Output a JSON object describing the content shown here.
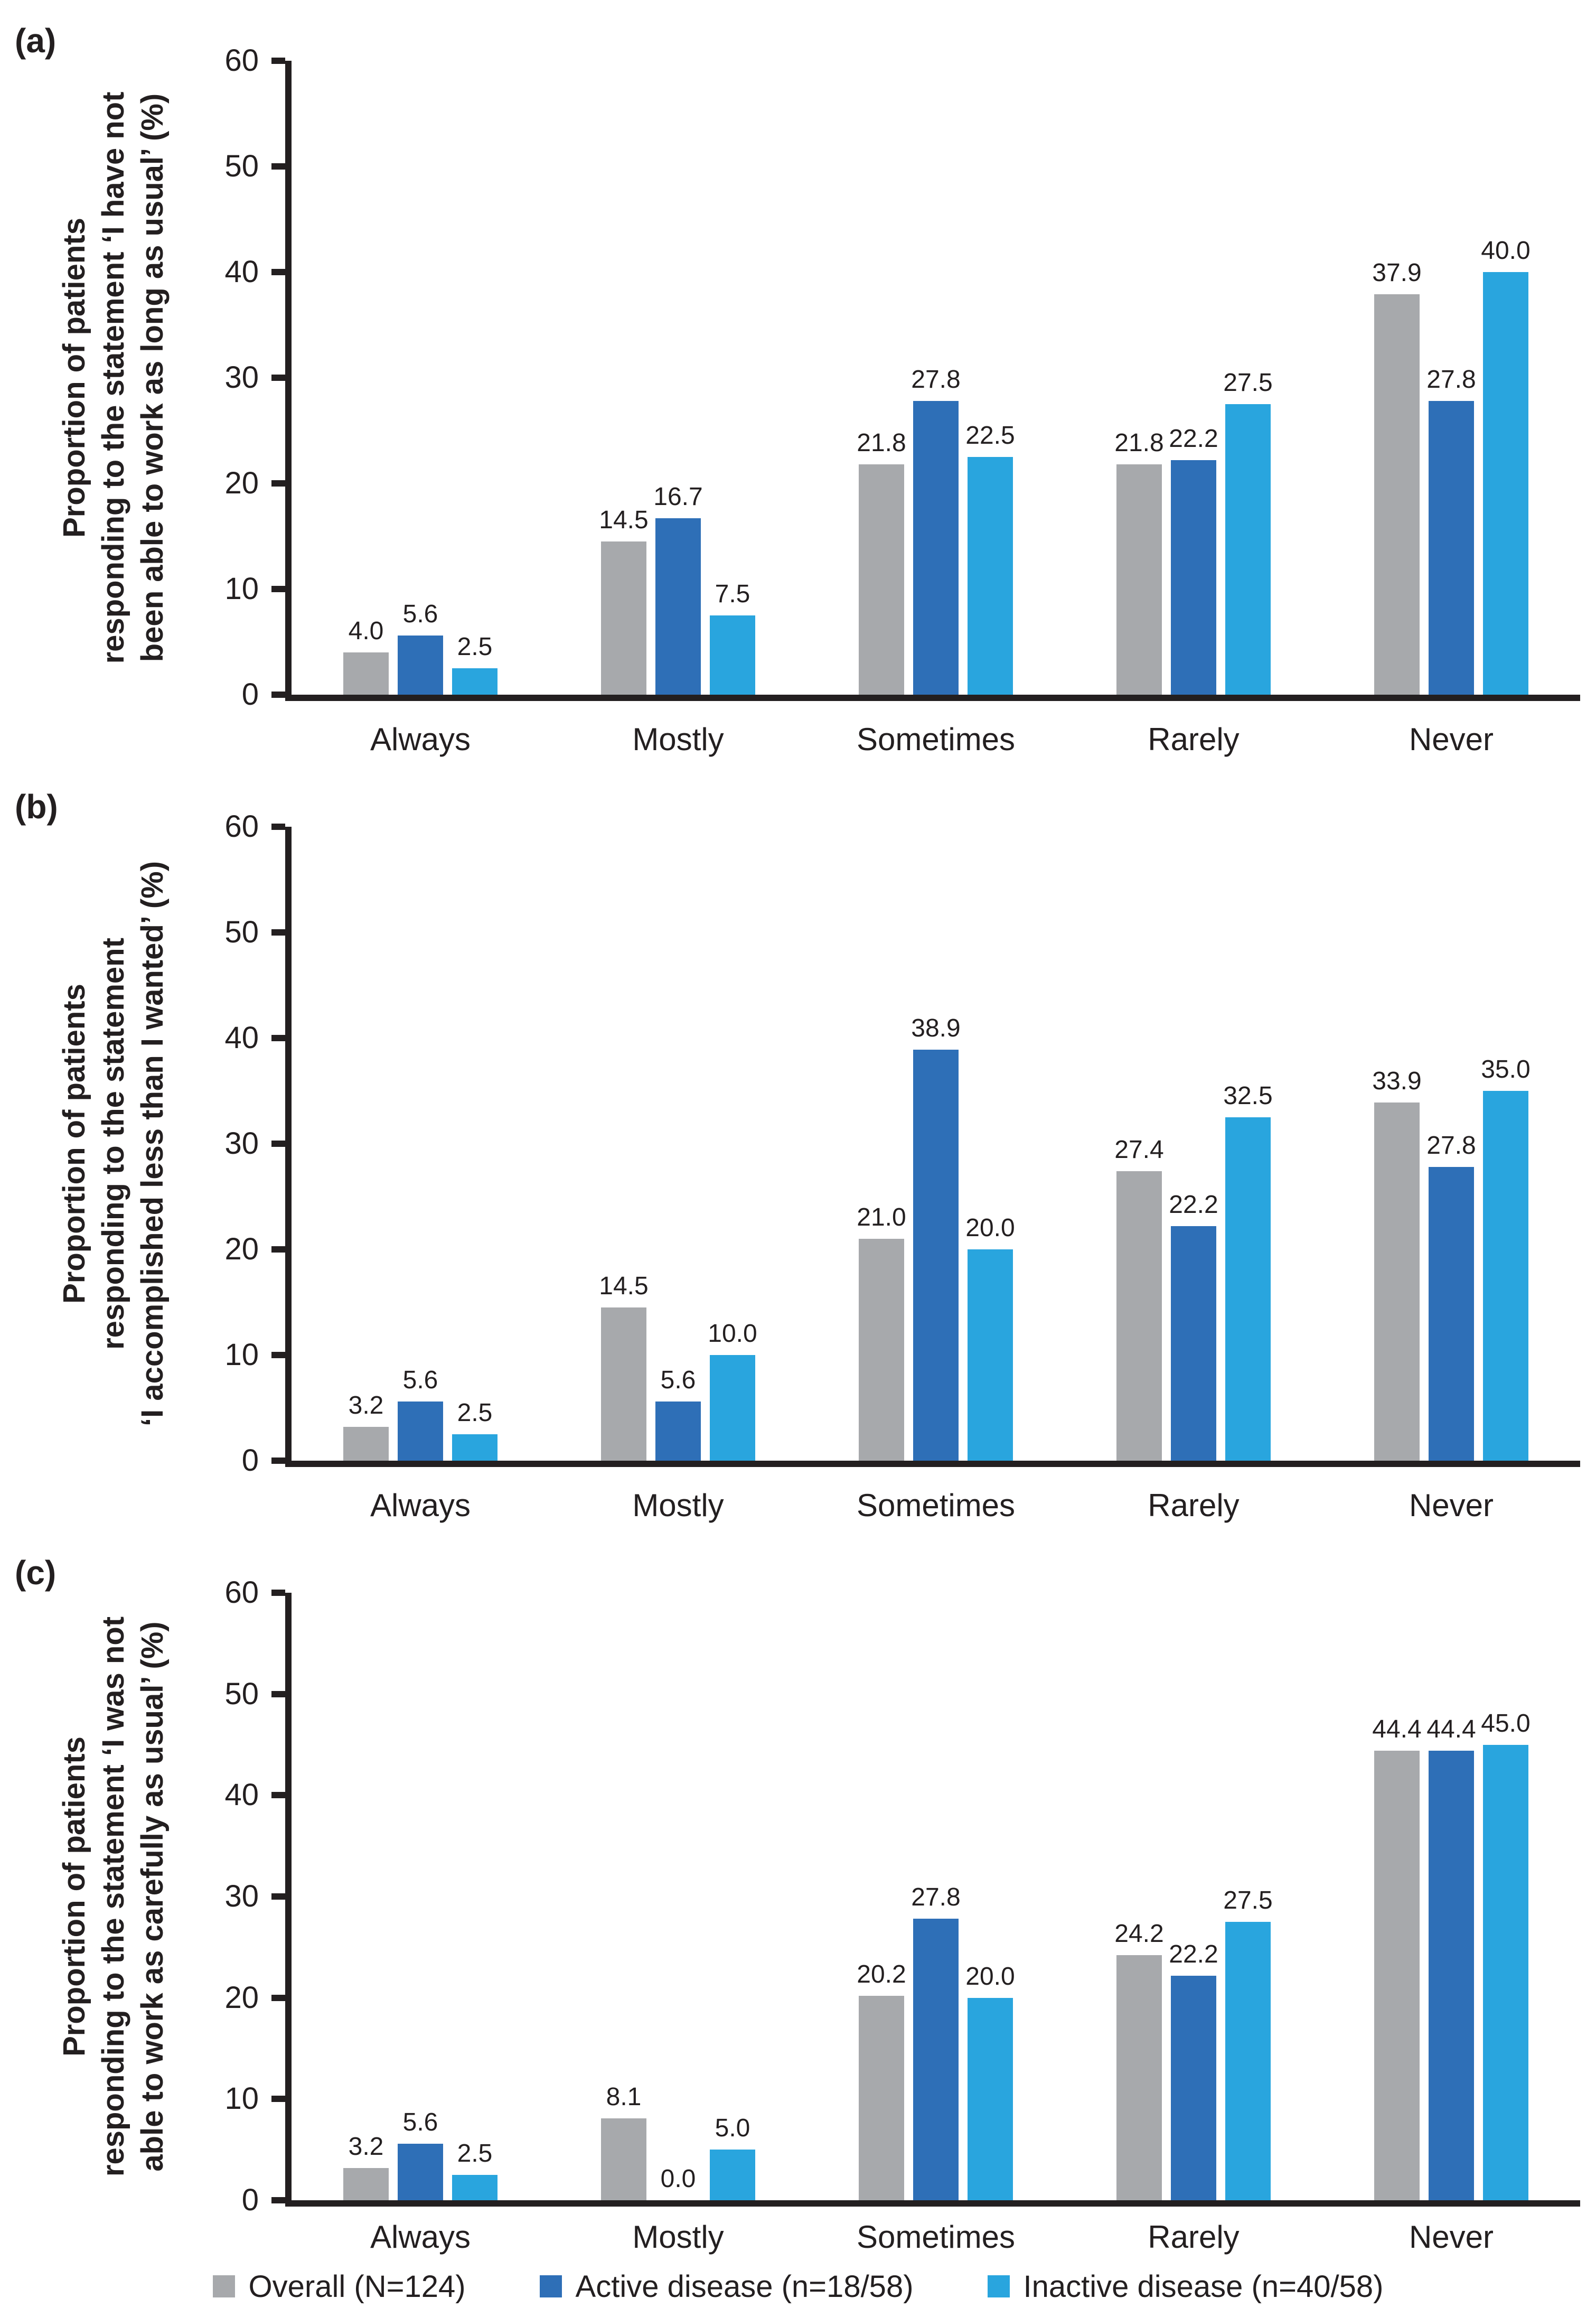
{
  "chart_data": [
    {
      "type": "bar",
      "panel_label": "(a)",
      "ylabel": "Proportion of patients responding to the statement ‘I have not been able to work as long as usual’ (%)",
      "ylabel_lines": [
        "Proportion of patients",
        "responding to the statement ‘I have not",
        "been able to work as long as usual’ (%)"
      ],
      "categories": [
        "Always",
        "Mostly",
        "Sometimes",
        "Rarely",
        "Never"
      ],
      "series": [
        {
          "name": "Overall (N=124)",
          "color": "#a7a9ac",
          "values": [
            4.0,
            14.5,
            21.8,
            21.8,
            37.9
          ]
        },
        {
          "name": "Active disease (n=18/58)",
          "color": "#2e6fb7",
          "values": [
            5.6,
            16.7,
            27.8,
            22.2,
            27.8
          ]
        },
        {
          "name": "Inactive disease (n=40/58)",
          "color": "#29a5de",
          "values": [
            2.5,
            7.5,
            22.5,
            27.5,
            40.0
          ]
        }
      ],
      "ylim": [
        0,
        60
      ],
      "yticks": [
        0,
        10,
        20,
        30,
        40,
        50,
        60
      ],
      "grid": false,
      "legend_position": "bottom"
    },
    {
      "type": "bar",
      "panel_label": "(b)",
      "ylabel": "Proportion of patients responding to the statement ‘I accomplished less than I wanted’ (%)",
      "ylabel_lines": [
        "Proportion of patients",
        "responding to the statement",
        "‘I accomplished less than I wanted’ (%)"
      ],
      "categories": [
        "Always",
        "Mostly",
        "Sometimes",
        "Rarely",
        "Never"
      ],
      "series": [
        {
          "name": "Overall (N=124)",
          "color": "#a7a9ac",
          "values": [
            3.2,
            14.5,
            21.0,
            27.4,
            33.9
          ]
        },
        {
          "name": "Active disease (n=18/58)",
          "color": "#2e6fb7",
          "values": [
            5.6,
            5.6,
            38.9,
            22.2,
            27.8
          ]
        },
        {
          "name": "Inactive disease (n=40/58)",
          "color": "#29a5de",
          "values": [
            2.5,
            10.0,
            20.0,
            32.5,
            35.0
          ]
        }
      ],
      "ylim": [
        0,
        60
      ],
      "yticks": [
        0,
        10,
        20,
        30,
        40,
        50,
        60
      ],
      "grid": false,
      "legend_position": "bottom"
    },
    {
      "type": "bar",
      "panel_label": "(c)",
      "ylabel": "Proportion of patients responding to the statement ‘I was not able to work as carefully as usual’ (%)",
      "ylabel_lines": [
        "Proportion of patients",
        "responding to the statement ‘I was not",
        "able to work as carefully as usual’ (%)"
      ],
      "categories": [
        "Always",
        "Mostly",
        "Sometimes",
        "Rarely",
        "Never"
      ],
      "series": [
        {
          "name": "Overall (N=124)",
          "color": "#a7a9ac",
          "values": [
            3.2,
            8.1,
            20.2,
            24.2,
            44.4
          ]
        },
        {
          "name": "Active disease (n=18/58)",
          "color": "#2e6fb7",
          "values": [
            5.6,
            0.0,
            27.8,
            22.2,
            44.4
          ]
        },
        {
          "name": "Inactive disease (n=40/58)",
          "color": "#29a5de",
          "values": [
            2.5,
            5.0,
            20.0,
            27.5,
            45.0
          ]
        }
      ],
      "ylim": [
        0,
        60
      ],
      "yticks": [
        0,
        10,
        20,
        30,
        40,
        50,
        60
      ],
      "grid": false,
      "legend_position": "bottom"
    }
  ],
  "legend": {
    "items": [
      {
        "label": "Overall (N=124)",
        "color": "#a7a9ac"
      },
      {
        "label": "Active disease (n=18/58)",
        "color": "#2e6fb7"
      },
      {
        "label": "Inactive disease (n=40/58)",
        "color": "#29a5de"
      }
    ]
  }
}
